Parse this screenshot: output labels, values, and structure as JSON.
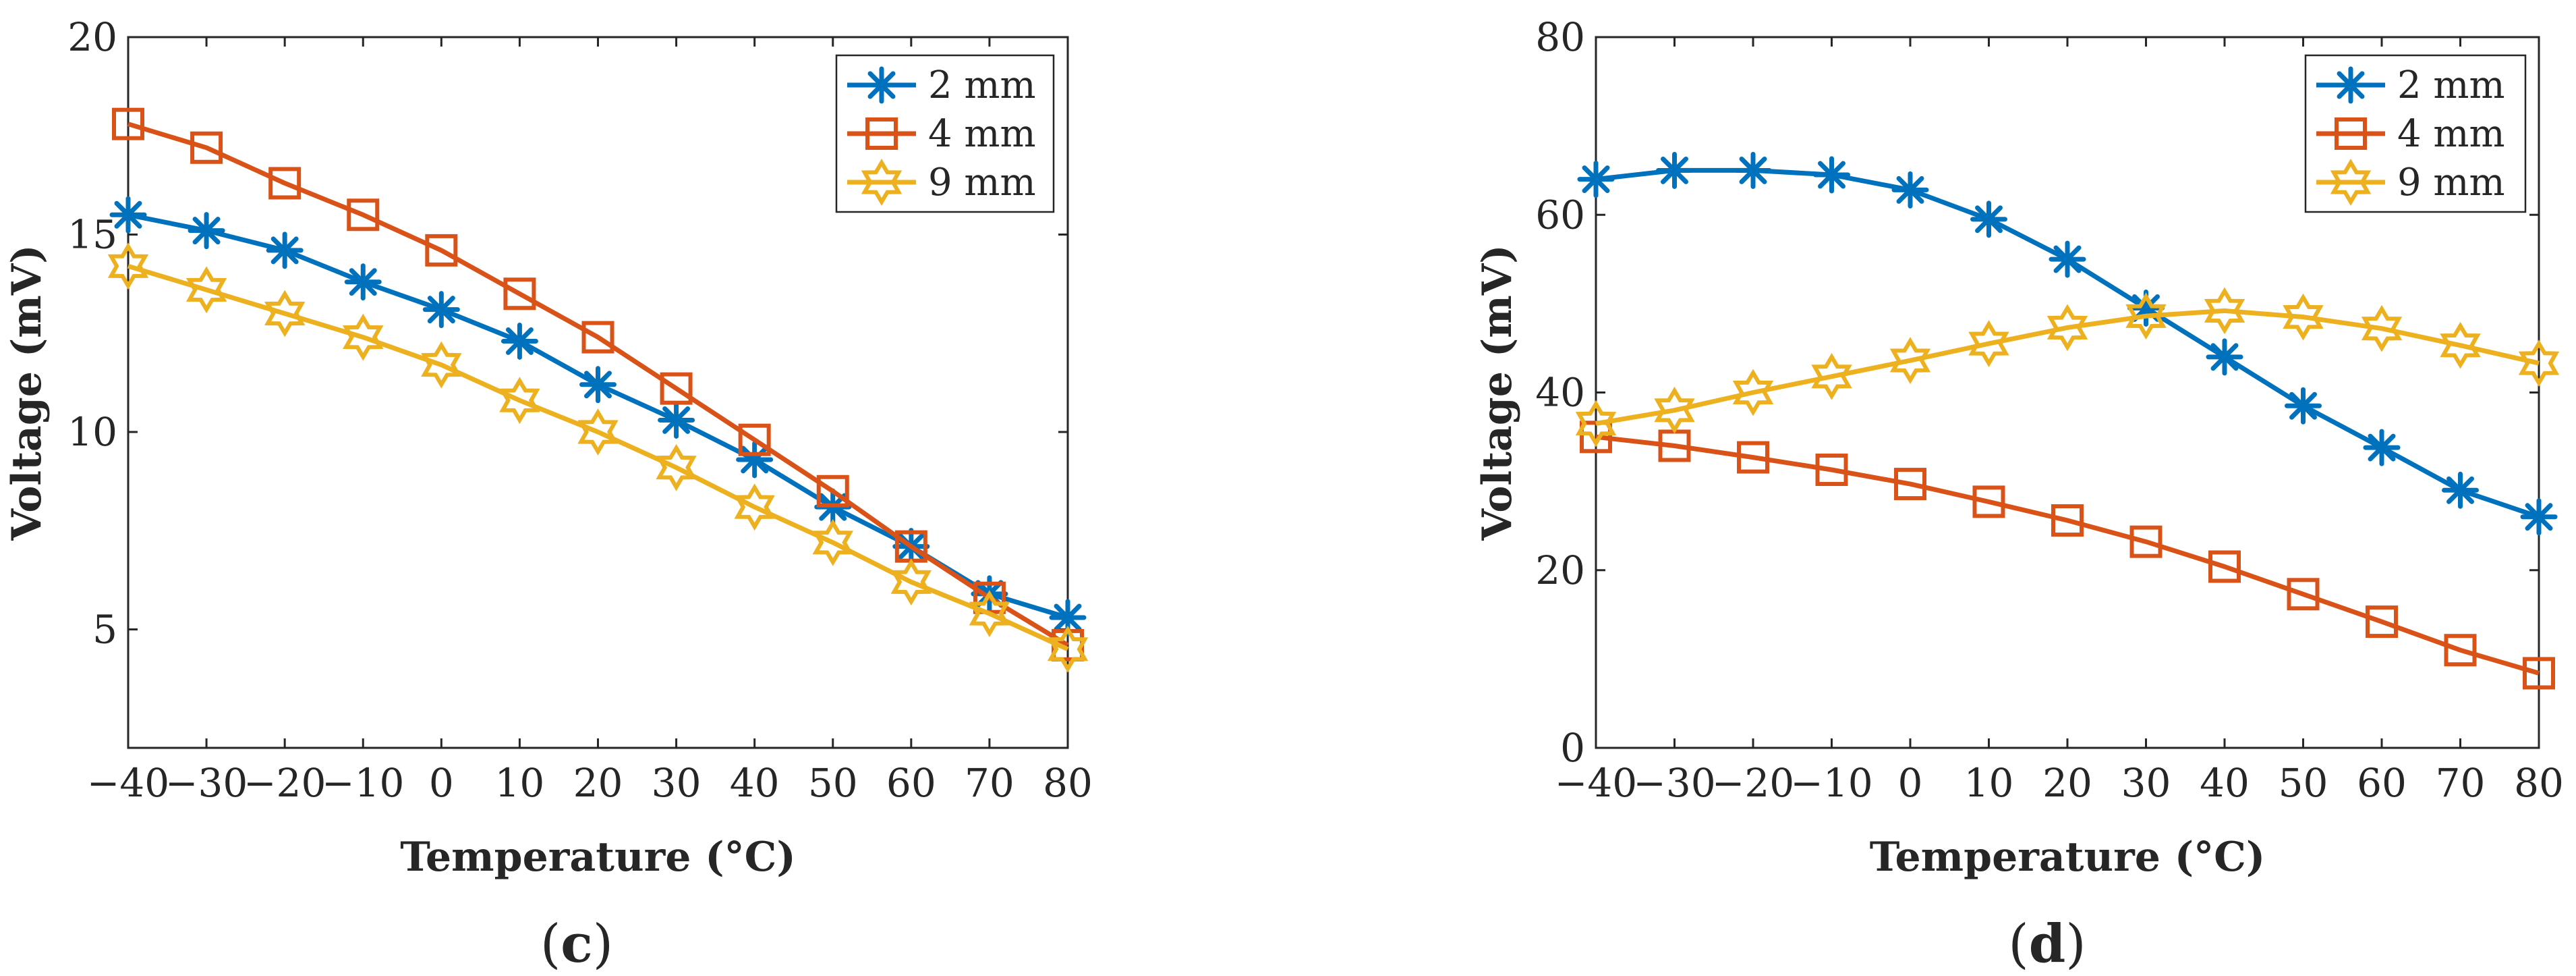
{
  "figure": {
    "panels": [
      {
        "id": "c",
        "panel_label": "c",
        "chart_data": {
          "type": "line",
          "title": "",
          "xlabel": "Temperature (°C)",
          "ylabel": "Voltage (mV)",
          "xlim": [
            -40,
            80
          ],
          "ylim": [
            2,
            20
          ],
          "x": [
            -40,
            -30,
            -20,
            -10,
            0,
            10,
            20,
            30,
            40,
            50,
            60,
            70,
            80
          ],
          "x_tick_labels": [
            "−40",
            "−30",
            "−20",
            "−10",
            "0",
            "10",
            "20",
            "30",
            "40",
            "50",
            "60",
            "70",
            "80"
          ],
          "y_ticks": [
            5,
            10,
            15,
            20
          ],
          "y_tick_labels": [
            "5",
            "10",
            "15",
            "20"
          ],
          "legend_position": "top-right",
          "series": [
            {
              "name": "2 mm",
              "color": "#0072BD",
              "marker": "asterisk",
              "values": [
                15.5,
                15.1,
                14.6,
                13.8,
                13.1,
                12.3,
                11.2,
                10.3,
                9.3,
                8.1,
                7.1,
                5.9,
                5.3
              ]
            },
            {
              "name": "4 mm",
              "color": "#D95319",
              "marker": "square",
              "values": [
                17.8,
                17.2,
                16.3,
                15.5,
                14.6,
                13.5,
                12.4,
                11.1,
                9.8,
                8.5,
                7.1,
                5.8,
                4.6
              ]
            },
            {
              "name": "9 mm",
              "color": "#EDB120",
              "marker": "hexagram",
              "values": [
                14.2,
                13.6,
                13.0,
                12.4,
                11.7,
                10.8,
                10.0,
                9.1,
                8.1,
                7.2,
                6.2,
                5.4,
                4.5
              ]
            }
          ]
        }
      },
      {
        "id": "d",
        "panel_label": "d",
        "chart_data": {
          "type": "line",
          "title": "",
          "xlabel": "Temperature (°C)",
          "ylabel": "Voltage (mV)",
          "xlim": [
            -40,
            80
          ],
          "ylim": [
            0,
            80
          ],
          "x": [
            -40,
            -30,
            -20,
            -10,
            0,
            10,
            20,
            30,
            40,
            50,
            60,
            70,
            80
          ],
          "x_tick_labels": [
            "−40",
            "−30",
            "−20",
            "−10",
            "0",
            "10",
            "20",
            "30",
            "40",
            "50",
            "60",
            "70",
            "80"
          ],
          "y_ticks": [
            0,
            20,
            40,
            60,
            80
          ],
          "y_tick_labels": [
            "0",
            "20",
            "40",
            "60",
            "80"
          ],
          "legend_position": "top-right",
          "series": [
            {
              "name": "2 mm",
              "color": "#0072BD",
              "marker": "asterisk",
              "values": [
                64,
                65,
                65,
                64.5,
                62.8,
                59.5,
                55,
                49.5,
                44,
                38.5,
                33.8,
                29,
                26
              ]
            },
            {
              "name": "4 mm",
              "color": "#D95319",
              "marker": "square",
              "values": [
                35,
                34,
                32.7,
                31.3,
                29.7,
                27.7,
                25.6,
                23.2,
                20.4,
                17.3,
                14.2,
                11,
                8.4
              ]
            },
            {
              "name": "9 mm",
              "color": "#EDB120",
              "marker": "hexagram",
              "values": [
                36.5,
                38,
                40,
                41.8,
                43.6,
                45.5,
                47.3,
                48.6,
                49.2,
                48.5,
                47.2,
                45.3,
                43.3
              ]
            }
          ]
        }
      }
    ]
  }
}
